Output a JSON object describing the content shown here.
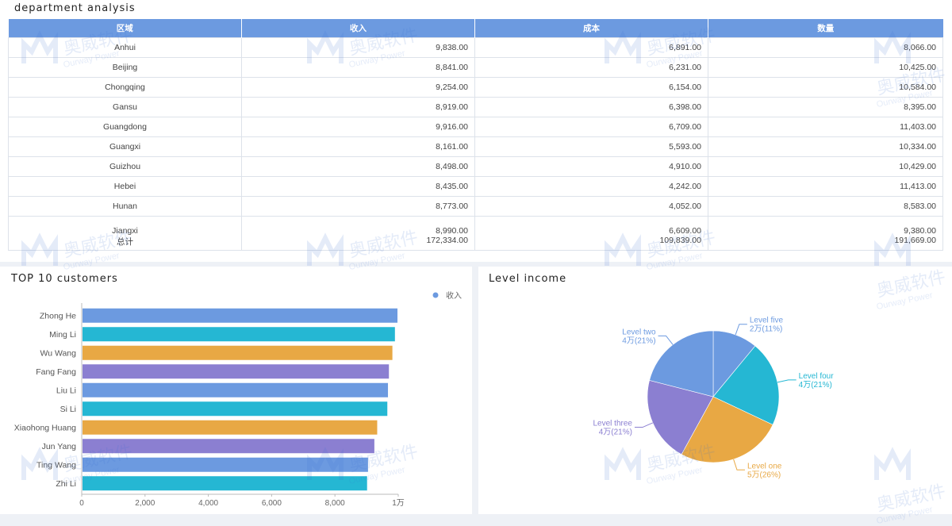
{
  "table_section": {
    "title": "department analysis",
    "headers": [
      "区域",
      "收入",
      "成本",
      "数量"
    ],
    "rows": [
      [
        "Anhui",
        "9,838.00",
        "6,891.00",
        "8,066.00"
      ],
      [
        "Beijing",
        "8,841.00",
        "6,231.00",
        "10,425.00"
      ],
      [
        "Chongqing",
        "9,254.00",
        "6,154.00",
        "10,584.00"
      ],
      [
        "Gansu",
        "8,919.00",
        "6,398.00",
        "8,395.00"
      ],
      [
        "Guangdong",
        "9,916.00",
        "6,709.00",
        "11,403.00"
      ],
      [
        "Guangxi",
        "8,161.00",
        "5,593.00",
        "10,334.00"
      ],
      [
        "Guizhou",
        "8,498.00",
        "4,910.00",
        "10,429.00"
      ],
      [
        "Hebei",
        "8,435.00",
        "4,242.00",
        "11,413.00"
      ],
      [
        "Hunan",
        "8,773.00",
        "4,052.00",
        "8,583.00"
      ],
      [
        "Jiangxi",
        "8,990.00",
        "6,609.00",
        "9,380.00"
      ]
    ],
    "total": [
      "总计",
      "172,334.00",
      "109,839.00",
      "191,669.00"
    ]
  },
  "watermark": {
    "cn": "奥威软件",
    "en": "Ourway Power"
  },
  "chart_data": [
    {
      "type": "bar",
      "orientation": "horizontal",
      "title": "TOP 10 customers",
      "categories": [
        "Zhong He",
        "Ming Li",
        "Wu Wang",
        "Fang Fang",
        "Liu Li",
        "Si Li",
        "Xiaohong Huang",
        "Jun Yang",
        "Ting Wang",
        "Zhi Li"
      ],
      "series": [
        {
          "name": "收入",
          "values": [
            9950,
            9870,
            9790,
            9680,
            9650,
            9630,
            9310,
            9220,
            9020,
            8990
          ]
        }
      ],
      "bar_colors": [
        "#6c9ae0",
        "#25b7d3",
        "#e8a844",
        "#8b7fd1"
      ],
      "xlim": [
        0,
        10000
      ],
      "xticks": [
        "0",
        "2,000",
        "4,000",
        "6,000",
        "8,000",
        "1万"
      ],
      "legend": "top-right",
      "legend_color": "#6c9ae0"
    },
    {
      "type": "pie",
      "title": "Level income",
      "slices": [
        {
          "label": "Level five",
          "value_label": "2万(11%)",
          "percent": 11,
          "color": "#6c9ae0"
        },
        {
          "label": "Level four",
          "value_label": "4万(21%)",
          "percent": 21,
          "color": "#25b7d3"
        },
        {
          "label": "Level one",
          "value_label": "5万(26%)",
          "percent": 26,
          "color": "#e8a844"
        },
        {
          "label": "Level three",
          "value_label": "4万(21%)",
          "percent": 21,
          "color": "#8b7fd1"
        },
        {
          "label": "Level two",
          "value_label": "4万(21%)",
          "percent": 21,
          "color": "#6c9ae0"
        }
      ]
    }
  ]
}
